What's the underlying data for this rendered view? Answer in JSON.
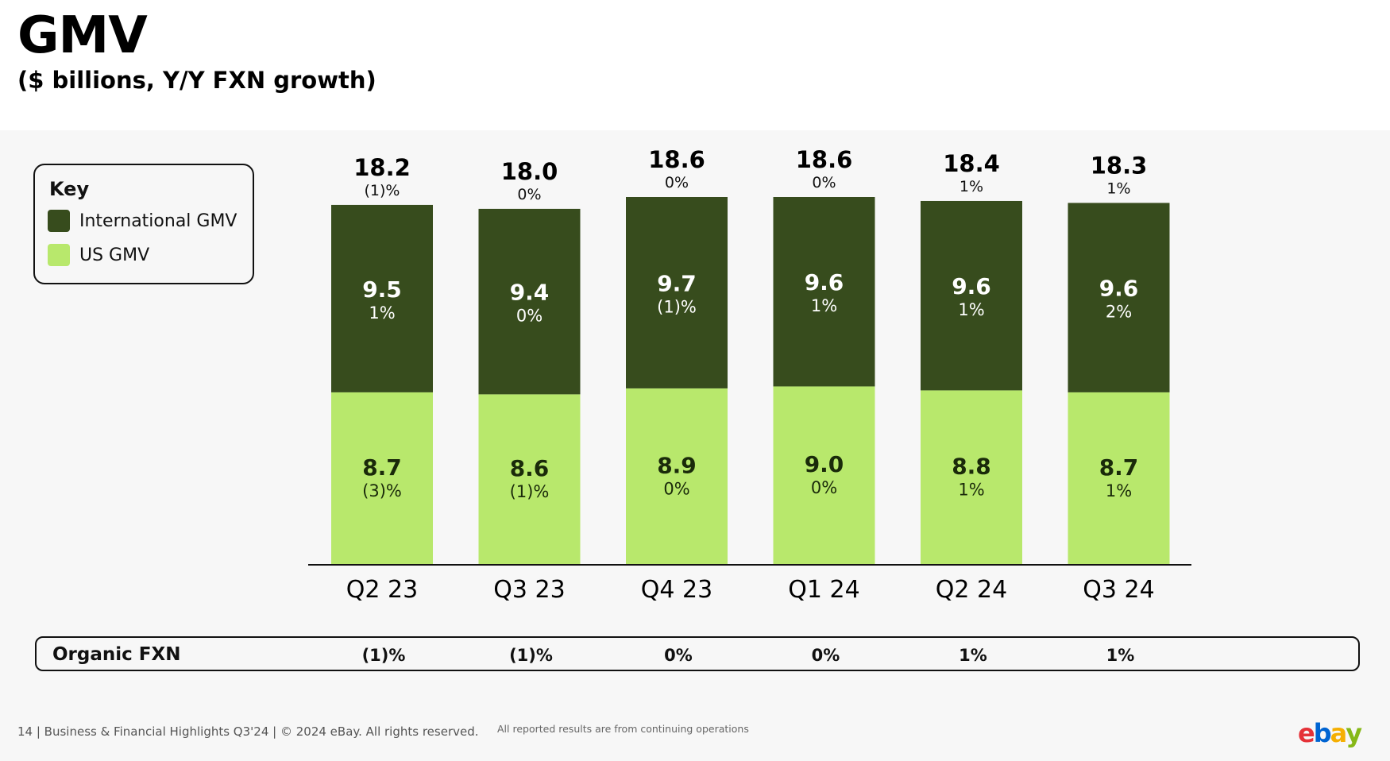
{
  "header": {
    "title": "GMV",
    "subtitle": "($ billions, Y/Y FXN growth)"
  },
  "key": {
    "title": "Key",
    "items": [
      {
        "label": "International GMV",
        "color": "#374c1d"
      },
      {
        "label": "US GMV",
        "color": "#b8e86c"
      }
    ]
  },
  "chart_data": {
    "type": "bar",
    "stacked": true,
    "categories": [
      "Q2 23",
      "Q3 23",
      "Q4 23",
      "Q1 24",
      "Q2 24",
      "Q3 24"
    ],
    "totals": [
      18.2,
      18.0,
      18.6,
      18.6,
      18.4,
      18.3
    ],
    "total_growth": [
      "(1)%",
      "0%",
      "0%",
      "0%",
      "1%",
      "1%"
    ],
    "series": [
      {
        "name": "US GMV",
        "color": "#b8e86c",
        "values": [
          8.7,
          8.6,
          8.9,
          9.0,
          8.8,
          8.7
        ],
        "growth": [
          "(3)%",
          "(1)%",
          "0%",
          "0%",
          "1%",
          "1%"
        ]
      },
      {
        "name": "International GMV",
        "color": "#374c1d",
        "values": [
          9.5,
          9.4,
          9.7,
          9.6,
          9.6,
          9.6
        ],
        "growth": [
          "1%",
          "0%",
          "(1)%",
          "1%",
          "1%",
          "2%"
        ]
      }
    ],
    "legend": "top-left",
    "grid": false
  },
  "organic": {
    "label": "Organic FXN",
    "values": [
      "(1)%",
      "(1)%",
      "0%",
      "0%",
      "1%",
      "1%"
    ]
  },
  "footer": {
    "left": "14 | Business & Financial Highlights Q3'24 | © 2024 eBay. All rights reserved.",
    "note": "All reported results are from continuing operations"
  },
  "logo": {
    "letters": [
      "e",
      "b",
      "a",
      "y"
    ],
    "colors": [
      "#e53238",
      "#0064d2",
      "#f5af02",
      "#86b817"
    ]
  }
}
